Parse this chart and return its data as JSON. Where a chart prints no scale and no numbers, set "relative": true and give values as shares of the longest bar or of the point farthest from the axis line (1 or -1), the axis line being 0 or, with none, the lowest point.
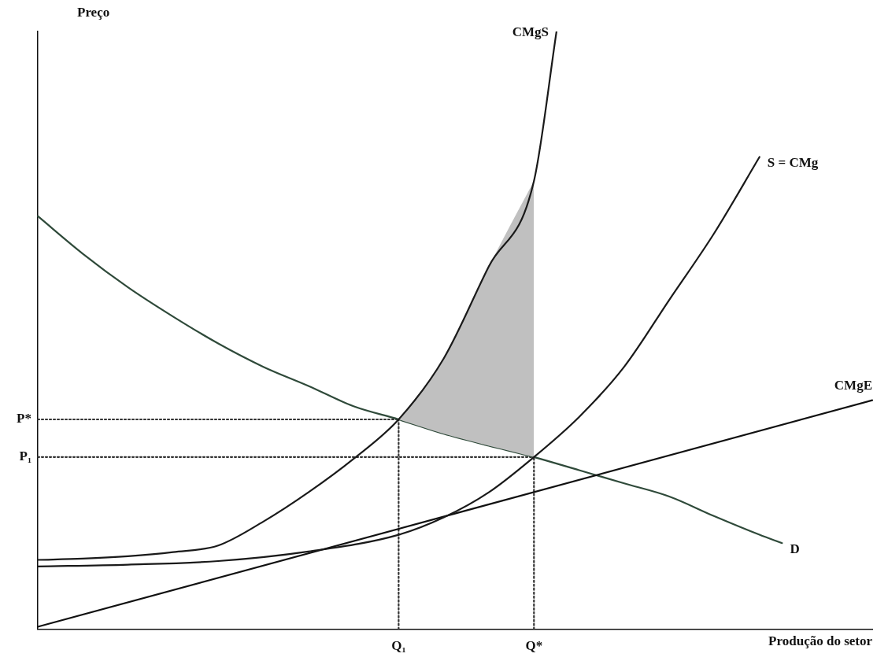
{
  "chart_data": {
    "type": "line",
    "relative": true,
    "marker": "none",
    "grid": false,
    "legend": false,
    "ylabel": "Preço",
    "xlabel": "Produção do setor",
    "categories": [
      null,
      null,
      null,
      null,
      null,
      null,
      null,
      null,
      null,
      null,
      null,
      null,
      null,
      null,
      null,
      null,
      "Q₁",
      null,
      null,
      null,
      null,
      null,
      "Q*",
      null,
      null,
      null,
      null,
      null,
      null,
      null,
      null,
      null,
      null,
      null,
      null,
      null,
      null,
      null
    ],
    "series": [
      {
        "name": "CMgS",
        "color": "#1a1a1a",
        "values": [
          0.116,
          null,
          0.118,
          null,
          0.122,
          null,
          0.129,
          null,
          0.14,
          null,
          0.18,
          null,
          0.229,
          null,
          0.285,
          null,
          0.351,
          null,
          0.453,
          null,
          0.607,
          null,
          0.75,
          1,
          null,
          null,
          null,
          null,
          null,
          null,
          null,
          null,
          null,
          null,
          null,
          null,
          null,
          null
        ]
      },
      {
        "name": "S = CMg",
        "color": "#1a1a1a",
        "values": [
          0.105,
          null,
          null,
          null,
          0.108,
          null,
          null,
          null,
          0.114,
          null,
          null,
          null,
          0.13,
          null,
          null,
          null,
          0.158,
          null,
          0.187,
          null,
          0.229,
          null,
          0.288,
          null,
          0.355,
          null,
          0.439,
          null,
          0.551,
          null,
          0.663,
          null,
          0.79,
          null,
          null,
          null,
          null,
          null
        ]
      },
      {
        "name": "CMgE",
        "color": "#111111",
        "values": [
          0.004,
          null,
          null,
          null,
          null,
          null,
          null,
          null,
          null,
          null,
          null,
          null,
          null,
          null,
          null,
          null,
          null,
          null,
          null,
          null,
          null,
          null,
          null,
          null,
          null,
          null,
          null,
          null,
          null,
          null,
          null,
          null,
          null,
          null,
          null,
          null,
          null,
          0.383
        ]
      },
      {
        "type": "area",
        "color": "#c0c0c0",
        "values": [
          null,
          null,
          null,
          null,
          null,
          null,
          null,
          null,
          null,
          null,
          null,
          null,
          null,
          null,
          null,
          null,
          0.351,
          null,
          0.453,
          null,
          0.607,
          null,
          0.75,
          null,
          null,
          null,
          null,
          null,
          null,
          null,
          null,
          null,
          null,
          null,
          null,
          null,
          null,
          null
        ]
      },
      {
        "name": "D",
        "color": "#2f4a3a",
        "values": [
          0.691,
          null,
          0.628,
          null,
          0.572,
          null,
          0.523,
          null,
          0.478,
          null,
          0.439,
          null,
          0.407,
          null,
          0.373,
          null,
          0.351,
          null,
          0.327,
          null,
          0.307,
          null,
          0.288,
          null,
          0.266,
          null,
          0.244,
          null,
          0.222,
          null,
          0.189,
          null,
          0.158,
          0.144,
          null,
          null,
          null,
          null
        ]
      },
      {
        "name": "P*",
        "color": "#333333",
        "line_style": "dotted",
        "values": [
          0.351,
          null,
          null,
          null,
          null,
          null,
          null,
          null,
          null,
          null,
          null,
          null,
          null,
          null,
          null,
          null,
          0.351,
          null,
          null,
          null,
          null,
          null,
          null,
          null,
          null,
          null,
          null,
          null,
          null,
          null,
          null,
          null,
          null,
          null,
          null,
          null,
          null,
          null
        ]
      },
      {
        "name": "P₁",
        "color": "#333333",
        "line_style": "dotted",
        "values": [
          0.288,
          null,
          null,
          null,
          null,
          null,
          null,
          null,
          null,
          null,
          null,
          null,
          null,
          null,
          null,
          null,
          null,
          null,
          null,
          null,
          null,
          null,
          0.288,
          null,
          null,
          null,
          null,
          null,
          null,
          null,
          null,
          null,
          null,
          null,
          null,
          null,
          null,
          null
        ]
      },
      {
        "color": "#333333",
        "line_style": "dotted",
        "x": [
          "Q₁",
          "Q₁"
        ],
        "values": [
          0,
          0.351
        ]
      },
      {
        "color": "#333333",
        "line_style": "dotted",
        "x": [
          "Q*",
          "Q*"
        ],
        "values": [
          0,
          0.288
        ]
      }
    ]
  }
}
